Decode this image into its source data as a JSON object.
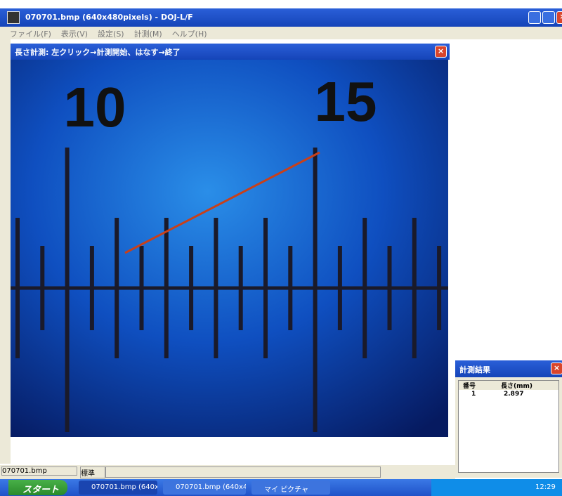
{
  "app_window": {
    "title": "070701.bmp (640x480pixels) - DOJ-L/F",
    "menu": [
      "ファイル(F)",
      "表示(V)",
      "設定(S)",
      "計測(M)",
      "ヘルプ(H)"
    ]
  },
  "measure_window": {
    "title": "長さ計測: 左クリック→計測開始、はなす→終了",
    "scale_labels": [
      "10",
      "15"
    ]
  },
  "results_window": {
    "title": "計測結果",
    "columns": [
      "番号",
      "長さ(mm)"
    ],
    "rows": [
      [
        "1",
        "2.897"
      ]
    ]
  },
  "status_bar": [
    "070701.bmp",
    "標準"
  ],
  "taskbar": {
    "start": "スタート",
    "items": [
      "070701.bmp (640x48...",
      "070701.bmp (640x48...",
      "マイ ピクチャ"
    ],
    "clock": "12:29"
  }
}
